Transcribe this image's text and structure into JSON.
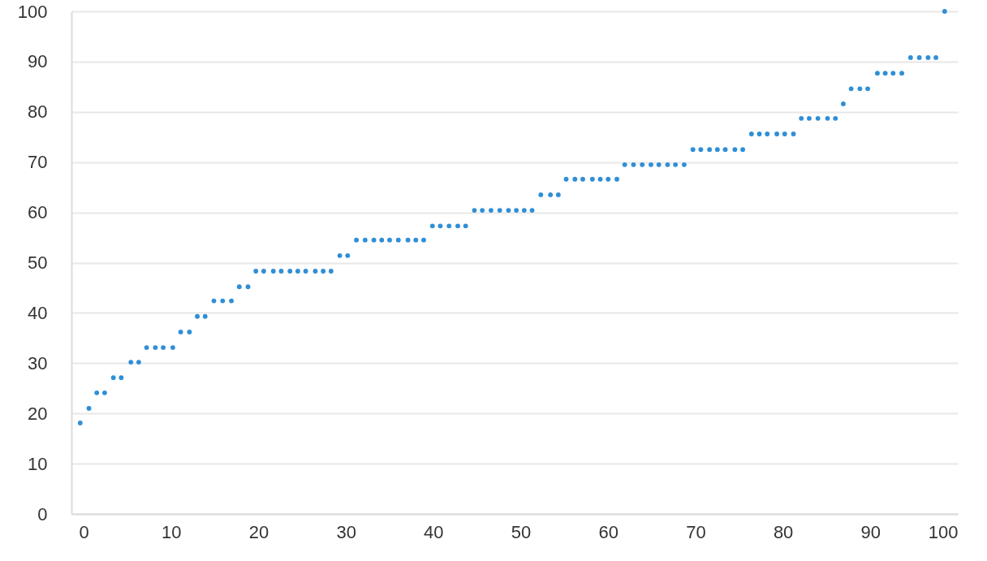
{
  "chart_data": {
    "type": "scatter",
    "marker": "circle",
    "grid": "y",
    "color": "#2f8fd6",
    "x": [
      -0.4,
      0.6,
      1.5,
      2.4,
      3.4,
      4.3,
      5.4,
      6.3,
      7.2,
      8.2,
      9.1,
      10.2,
      11.1,
      12.1,
      13.0,
      13.9,
      14.9,
      15.9,
      16.9,
      17.8,
      18.8,
      19.7,
      20.6,
      21.7,
      22.6,
      23.6,
      24.5,
      25.4,
      26.5,
      27.4,
      28.3,
      29.3,
      30.2,
      31.2,
      32.2,
      33.2,
      34.1,
      35.0,
      36.0,
      37.1,
      38.0,
      38.9,
      39.9,
      40.8,
      41.8,
      42.8,
      43.7,
      44.7,
      45.6,
      46.6,
      47.6,
      48.6,
      49.5,
      50.4,
      51.3,
      52.3,
      53.4,
      54.3,
      55.2,
      56.2,
      57.1,
      58.2,
      59.1,
      60.0,
      61.0,
      61.9,
      62.9,
      63.9,
      64.9,
      65.8,
      66.8,
      67.7,
      68.7,
      69.7,
      70.6,
      71.6,
      72.5,
      73.4,
      74.5,
      75.4,
      76.4,
      77.3,
      78.2,
      79.3,
      80.2,
      81.2,
      82.1,
      83.0,
      84.0,
      85.1,
      86.0,
      86.9,
      87.8,
      88.8,
      89.7,
      90.8,
      91.7,
      92.6,
      93.6,
      94.6,
      95.6,
      96.6,
      97.5,
      98.5
    ],
    "values": [
      18.1,
      21.0,
      24.1,
      24.1,
      27.1,
      27.1,
      30.2,
      30.2,
      33.1,
      33.1,
      33.1,
      33.1,
      36.2,
      36.2,
      39.3,
      39.3,
      42.4,
      42.4,
      42.4,
      45.2,
      45.2,
      48.3,
      48.3,
      48.3,
      48.3,
      48.3,
      48.3,
      48.3,
      48.3,
      48.3,
      48.3,
      51.4,
      51.4,
      54.5,
      54.5,
      54.5,
      54.5,
      54.5,
      54.5,
      54.5,
      54.5,
      54.5,
      57.3,
      57.3,
      57.3,
      57.3,
      57.3,
      60.4,
      60.4,
      60.4,
      60.4,
      60.4,
      60.4,
      60.4,
      60.4,
      63.5,
      63.5,
      63.5,
      66.6,
      66.6,
      66.6,
      66.6,
      66.6,
      66.6,
      66.6,
      69.5,
      69.5,
      69.5,
      69.5,
      69.5,
      69.5,
      69.5,
      69.5,
      72.5,
      72.5,
      72.5,
      72.5,
      72.5,
      72.5,
      72.5,
      75.6,
      75.6,
      75.6,
      75.6,
      75.6,
      75.6,
      78.7,
      78.7,
      78.7,
      78.7,
      78.7,
      81.6,
      84.6,
      84.6,
      84.6,
      87.7,
      87.7,
      87.7,
      87.7,
      90.8,
      90.8,
      90.8,
      90.8,
      100
    ],
    "xlim": [
      -1.4,
      100
    ],
    "xticks": [
      0,
      10,
      20,
      30,
      40,
      50,
      60,
      70,
      80,
      90,
      100
    ],
    "ylim": [
      0,
      100
    ],
    "yticks": [
      0,
      10,
      20,
      30,
      40,
      50,
      60,
      70,
      80,
      90,
      100
    ]
  }
}
